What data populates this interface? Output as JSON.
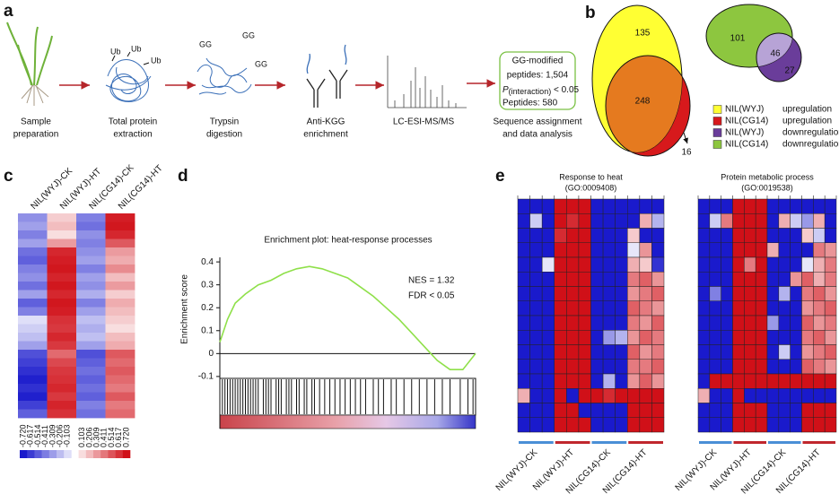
{
  "panel_labels": [
    "a",
    "b",
    "c",
    "d",
    "e"
  ],
  "workflow": {
    "steps": [
      [
        "Sample",
        "preparation"
      ],
      [
        "Total protein",
        "extraction"
      ],
      [
        "Trypsin",
        "digestion"
      ],
      [
        "Anti-KGG",
        "enrichment"
      ],
      [
        "LC-ESI-MS/MS"
      ],
      [
        "Sequence assignment",
        "and data analysis"
      ]
    ],
    "icon_labels": {
      "ub": "Ub",
      "gg": "GG"
    },
    "result_box": {
      "line1": "GG-modified",
      "line2": "peptides: 1,504",
      "p": "P",
      "p_sub": "(interaction)",
      "p_rest": " < 0.05",
      "line4": "Peptides: 580"
    }
  },
  "venn_legend": [
    {
      "name": "NIL(WYJ)",
      "regulation": "upregulation",
      "color": "#ffff33"
    },
    {
      "name": "NIL(CG14)",
      "regulation": "upregulation",
      "color": "#d7191c"
    },
    {
      "name": "NIL(WYJ)",
      "regulation": "downregulation",
      "color": "#6a3d9a"
    },
    {
      "name": "NIL(CG14)",
      "regulation": "downregulation",
      "color": "#8dc63f"
    }
  ],
  "chart_data": [
    {
      "type": "venn",
      "values": [
        135,
        248,
        16
      ],
      "colors": [
        "#ffff33",
        "#e57a1f",
        "#d7191c"
      ]
    },
    {
      "type": "venn",
      "values": [
        101,
        46,
        27
      ],
      "colors": [
        "#8dc63f",
        "#b7a3d6",
        "#6a3d9a"
      ]
    },
    {
      "type": "heatmap",
      "columns": [
        "NIL(WYJ)-CK",
        "NIL(WYJ)-HT",
        "NIL(CG14)-CK",
        "NIL(CG14)-HT"
      ],
      "colorbar_ticks": [
        {
          "value": -0.72,
          "label": "-0.720"
        },
        -0.617,
        -0.514,
        -0.411,
        -0.309,
        -0.206,
        -0.103,
        0.103,
        0.206,
        0.309,
        0.411,
        0.514,
        0.617,
        {
          "value": 0.72,
          "label": "0.720"
        }
      ],
      "values": [
        [
          -0.35,
          0.15,
          -0.4,
          0.68
        ],
        [
          -0.3,
          0.2,
          -0.45,
          0.7
        ],
        [
          -0.4,
          0.1,
          -0.35,
          0.65
        ],
        [
          -0.3,
          0.3,
          -0.4,
          0.5
        ],
        [
          -0.45,
          0.65,
          -0.35,
          0.3
        ],
        [
          -0.5,
          0.68,
          -0.3,
          0.25
        ],
        [
          -0.4,
          0.7,
          -0.4,
          0.35
        ],
        [
          -0.35,
          0.66,
          -0.3,
          0.2
        ],
        [
          -0.45,
          0.7,
          -0.35,
          0.3
        ],
        [
          -0.3,
          0.65,
          -0.25,
          0.15
        ],
        [
          -0.5,
          0.7,
          -0.4,
          0.25
        ],
        [
          -0.4,
          0.68,
          -0.3,
          0.2
        ],
        [
          -0.1,
          0.62,
          -0.2,
          0.15
        ],
        [
          -0.15,
          0.6,
          -0.25,
          0.1
        ],
        [
          -0.2,
          0.65,
          -0.2,
          0.2
        ],
        [
          -0.3,
          0.6,
          -0.3,
          0.25
        ],
        [
          -0.55,
          0.45,
          -0.55,
          0.5
        ],
        [
          -0.6,
          0.55,
          -0.5,
          0.45
        ],
        [
          -0.65,
          0.6,
          -0.45,
          0.5
        ],
        [
          -0.7,
          0.62,
          -0.5,
          0.45
        ],
        [
          -0.65,
          0.65,
          -0.45,
          0.4
        ],
        [
          -0.7,
          0.6,
          -0.5,
          0.5
        ],
        [
          -0.6,
          0.66,
          -0.4,
          0.4
        ],
        [
          -0.5,
          0.62,
          -0.45,
          0.45
        ]
      ]
    },
    {
      "type": "line",
      "title": "Enrichment plot: heat-response processes",
      "y_label": "Enrichment score",
      "annotations": [
        "NES = 1.32",
        "FDR < 0.05"
      ],
      "xlim": [
        0,
        100
      ],
      "ylim": [
        -0.12,
        0.42
      ],
      "yticks": [
        0.4,
        0.3,
        0.2,
        0.1,
        0,
        -0.1
      ],
      "color": "#8fe04a",
      "x": [
        0,
        3,
        6,
        10,
        15,
        20,
        25,
        30,
        35,
        40,
        45,
        50,
        55,
        60,
        65,
        70,
        75,
        80,
        85,
        90,
        95,
        100
      ],
      "values": [
        0.05,
        0.15,
        0.22,
        0.26,
        0.3,
        0.32,
        0.35,
        0.37,
        0.38,
        0.37,
        0.35,
        0.33,
        0.29,
        0.25,
        0.2,
        0.15,
        0.09,
        0.03,
        -0.03,
        -0.07,
        -0.07,
        0.0
      ],
      "hits": [
        0,
        1,
        2,
        3,
        4,
        5,
        6,
        7,
        8,
        9,
        10,
        11,
        12,
        13,
        14,
        15,
        17,
        18,
        19,
        20,
        22,
        23,
        24,
        26,
        27,
        28,
        30,
        31,
        33,
        34,
        36,
        37,
        39,
        41,
        43,
        45,
        47,
        49,
        51,
        53,
        55,
        57,
        60,
        62,
        64,
        67,
        69,
        72,
        75,
        78,
        81,
        84,
        87,
        90,
        94,
        97,
        99
      ]
    },
    {
      "type": "heatmap",
      "title": "Response to heat",
      "subtitle": "(GO:0009408)",
      "columns": [
        "NIL(WYJ)-CK",
        "NIL(WYJ)-HT",
        "NIL(CG14)-CK",
        "NIL(CG14)-HT"
      ],
      "values": [
        [
          -0.9,
          -0.9,
          -0.9,
          0.9,
          0.9,
          0.9,
          -0.9,
          -0.9,
          -0.9,
          -0.9,
          -0.9,
          -0.9
        ],
        [
          -0.9,
          -0.2,
          -0.9,
          0.9,
          0.8,
          0.9,
          -0.9,
          -0.9,
          -0.9,
          -0.9,
          0.3,
          -0.3
        ],
        [
          -0.9,
          -0.9,
          -0.9,
          0.8,
          0.9,
          0.9,
          -0.9,
          -0.9,
          -0.9,
          0.2,
          -0.9,
          -0.9
        ],
        [
          -0.9,
          -0.9,
          -0.9,
          0.9,
          0.9,
          0.9,
          -0.9,
          -0.9,
          -0.9,
          -0.1,
          0.4,
          -0.9
        ],
        [
          -0.9,
          -0.9,
          -0.1,
          0.9,
          0.9,
          0.9,
          -0.9,
          -0.9,
          -0.9,
          0.3,
          0.2,
          -0.8
        ],
        [
          -0.9,
          -0.9,
          -0.9,
          0.9,
          0.9,
          0.9,
          -0.9,
          -0.9,
          -0.9,
          0.5,
          0.6,
          0.4
        ],
        [
          -0.9,
          -0.9,
          -0.9,
          0.9,
          0.9,
          0.9,
          -0.9,
          -0.9,
          -0.9,
          0.4,
          0.5,
          0.6
        ],
        [
          -0.9,
          -0.9,
          -0.9,
          0.9,
          0.9,
          0.9,
          -0.9,
          -0.9,
          -0.9,
          0.6,
          0.5,
          0.4
        ],
        [
          -0.9,
          -0.9,
          -0.9,
          0.9,
          0.9,
          0.9,
          -0.9,
          -0.9,
          -0.9,
          0.5,
          0.4,
          0.6
        ],
        [
          -0.9,
          -0.9,
          -0.9,
          0.9,
          0.9,
          0.9,
          -0.9,
          -0.4,
          -0.3,
          0.4,
          0.6,
          0.5
        ],
        [
          -0.9,
          -0.9,
          -0.9,
          0.9,
          0.9,
          0.9,
          -0.9,
          -0.9,
          -0.9,
          0.6,
          0.4,
          0.5
        ],
        [
          -0.9,
          -0.9,
          -0.9,
          0.9,
          0.9,
          0.9,
          -0.9,
          -0.9,
          -0.9,
          0.5,
          0.5,
          0.6
        ],
        [
          -0.9,
          -0.9,
          -0.9,
          0.9,
          0.9,
          0.9,
          -0.9,
          -0.3,
          -0.9,
          0.4,
          0.6,
          0.4
        ],
        [
          0.3,
          -0.9,
          -0.9,
          0.9,
          -0.9,
          0.9,
          0.9,
          0.8,
          0.9,
          0.9,
          0.9,
          0.9
        ],
        [
          -0.9,
          -0.9,
          -0.9,
          0.9,
          0.9,
          -0.9,
          -0.9,
          -0.9,
          -0.9,
          0.9,
          0.9,
          0.9
        ],
        [
          -0.9,
          -0.9,
          -0.9,
          0.9,
          0.9,
          0.9,
          -0.9,
          -0.9,
          -0.9,
          0.9,
          0.9,
          0.9
        ]
      ]
    },
    {
      "type": "heatmap",
      "title": "Protein metabolic process",
      "subtitle": "(GO:0019538)",
      "columns": [
        "NIL(WYJ)-CK",
        "NIL(WYJ)-HT",
        "NIL(CG14)-CK",
        "NIL(CG14)-HT"
      ],
      "values": [
        [
          -0.9,
          -0.9,
          -0.9,
          0.9,
          0.9,
          0.9,
          -0.9,
          -0.9,
          -0.9,
          -0.9,
          -0.9,
          -0.9
        ],
        [
          -0.9,
          -0.2,
          0.5,
          0.9,
          0.9,
          0.9,
          -0.9,
          0.3,
          -0.2,
          -0.4,
          0.3,
          -0.9
        ],
        [
          -0.9,
          -0.9,
          -0.9,
          0.9,
          0.9,
          0.9,
          -0.9,
          -0.9,
          -0.9,
          0.2,
          -0.2,
          -0.9
        ],
        [
          -0.9,
          -0.9,
          -0.9,
          0.9,
          0.9,
          0.9,
          0.3,
          -0.9,
          -0.9,
          -0.9,
          0.5,
          0.4
        ],
        [
          -0.9,
          -0.9,
          -0.9,
          0.9,
          0.5,
          0.9,
          -0.9,
          -0.9,
          -0.9,
          -0.1,
          0.3,
          0.5
        ],
        [
          -0.9,
          -0.9,
          -0.9,
          0.9,
          0.9,
          0.9,
          -0.9,
          -0.9,
          0.4,
          0.6,
          0.3,
          0.5
        ],
        [
          -0.9,
          -0.5,
          -0.9,
          0.9,
          0.9,
          0.9,
          -0.9,
          -0.3,
          -0.9,
          0.5,
          0.6,
          0.4
        ],
        [
          -0.9,
          -0.9,
          -0.9,
          0.9,
          0.9,
          0.9,
          -0.9,
          -0.9,
          -0.9,
          0.4,
          0.5,
          0.6
        ],
        [
          -0.9,
          -0.9,
          -0.9,
          0.9,
          0.9,
          0.9,
          -0.4,
          -0.9,
          -0.9,
          0.6,
          0.4,
          0.5
        ],
        [
          -0.9,
          -0.9,
          -0.9,
          0.9,
          0.9,
          0.9,
          -0.9,
          -0.9,
          -0.9,
          0.5,
          0.6,
          0.4
        ],
        [
          -0.9,
          -0.9,
          -0.9,
          0.9,
          0.9,
          0.9,
          -0.9,
          -0.2,
          -0.9,
          0.4,
          0.5,
          0.6
        ],
        [
          -0.9,
          -0.9,
          -0.9,
          0.9,
          0.9,
          0.9,
          -0.9,
          -0.9,
          -0.9,
          0.6,
          0.5,
          0.4
        ],
        [
          -0.9,
          0.9,
          0.9,
          0.9,
          0.9,
          0.9,
          0.9,
          0.9,
          0.9,
          0.9,
          0.9,
          0.9
        ],
        [
          0.3,
          -0.9,
          -0.9,
          0.9,
          -0.9,
          -0.9,
          -0.9,
          -0.9,
          -0.9,
          -0.9,
          -0.9,
          -0.9
        ],
        [
          -0.9,
          -0.9,
          -0.9,
          0.9,
          0.9,
          0.9,
          -0.9,
          -0.9,
          -0.9,
          0.9,
          0.9,
          0.9
        ],
        [
          -0.9,
          -0.9,
          -0.9,
          0.9,
          0.9,
          0.9,
          -0.9,
          -0.9,
          -0.9,
          0.9,
          0.9,
          0.9
        ]
      ]
    }
  ]
}
